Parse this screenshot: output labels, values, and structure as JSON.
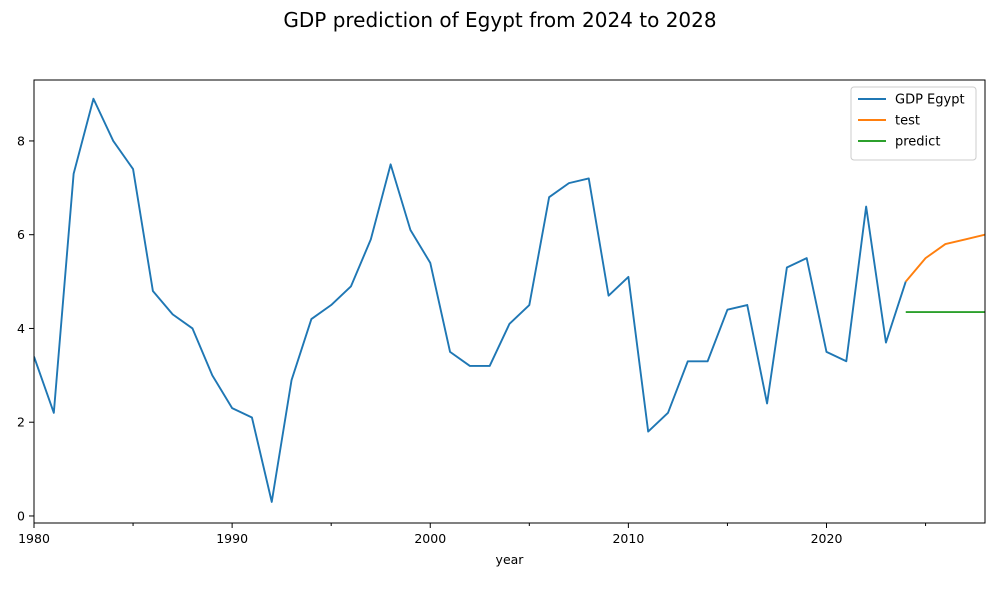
{
  "chart_data": {
    "type": "line",
    "title": "GDP prediction of Egypt from 2024 to 2028",
    "xlabel": "year",
    "ylabel": "",
    "xlim": [
      1980,
      2028
    ],
    "ylim": [
      -0.15,
      9.3
    ],
    "x_ticks": [
      1980,
      1990,
      2000,
      2010,
      2020
    ],
    "x_minor_ticks": [
      1985,
      1995,
      2005,
      2015,
      2025
    ],
    "y_ticks": [
      0,
      2,
      4,
      6,
      8
    ],
    "grid": false,
    "legend_position": "top-right",
    "series": [
      {
        "name": "GDP Egypt",
        "color": "#1f77b4",
        "x": [
          1980,
          1981,
          1982,
          1983,
          1984,
          1985,
          1986,
          1987,
          1988,
          1989,
          1990,
          1991,
          1992,
          1993,
          1994,
          1995,
          1996,
          1997,
          1998,
          1999,
          2000,
          2001,
          2002,
          2003,
          2004,
          2005,
          2006,
          2007,
          2008,
          2009,
          2010,
          2011,
          2012,
          2013,
          2014,
          2015,
          2016,
          2017,
          2018,
          2019,
          2020,
          2021,
          2022,
          2023,
          2024
        ],
        "y": [
          3.4,
          2.2,
          7.3,
          8.9,
          8.0,
          7.4,
          4.8,
          4.3,
          4.0,
          3.0,
          2.3,
          2.1,
          0.3,
          2.9,
          4.2,
          4.5,
          4.9,
          5.9,
          7.5,
          6.1,
          5.4,
          3.5,
          3.2,
          3.2,
          4.1,
          4.5,
          6.8,
          7.1,
          7.2,
          4.7,
          5.1,
          1.8,
          2.2,
          3.3,
          3.3,
          4.4,
          4.5,
          2.4,
          5.3,
          5.5,
          3.5,
          3.3,
          6.6,
          3.7,
          5.0
        ]
      },
      {
        "name": "test",
        "color": "#ff7f0e",
        "x": [
          2024,
          2025,
          2026,
          2027,
          2028
        ],
        "y": [
          5.0,
          5.5,
          5.8,
          5.9,
          6.0
        ]
      },
      {
        "name": "predict",
        "color": "#2ca02c",
        "x": [
          2024,
          2025,
          2026,
          2027,
          2028
        ],
        "y": [
          4.35,
          4.35,
          4.35,
          4.35,
          4.35
        ]
      }
    ]
  }
}
